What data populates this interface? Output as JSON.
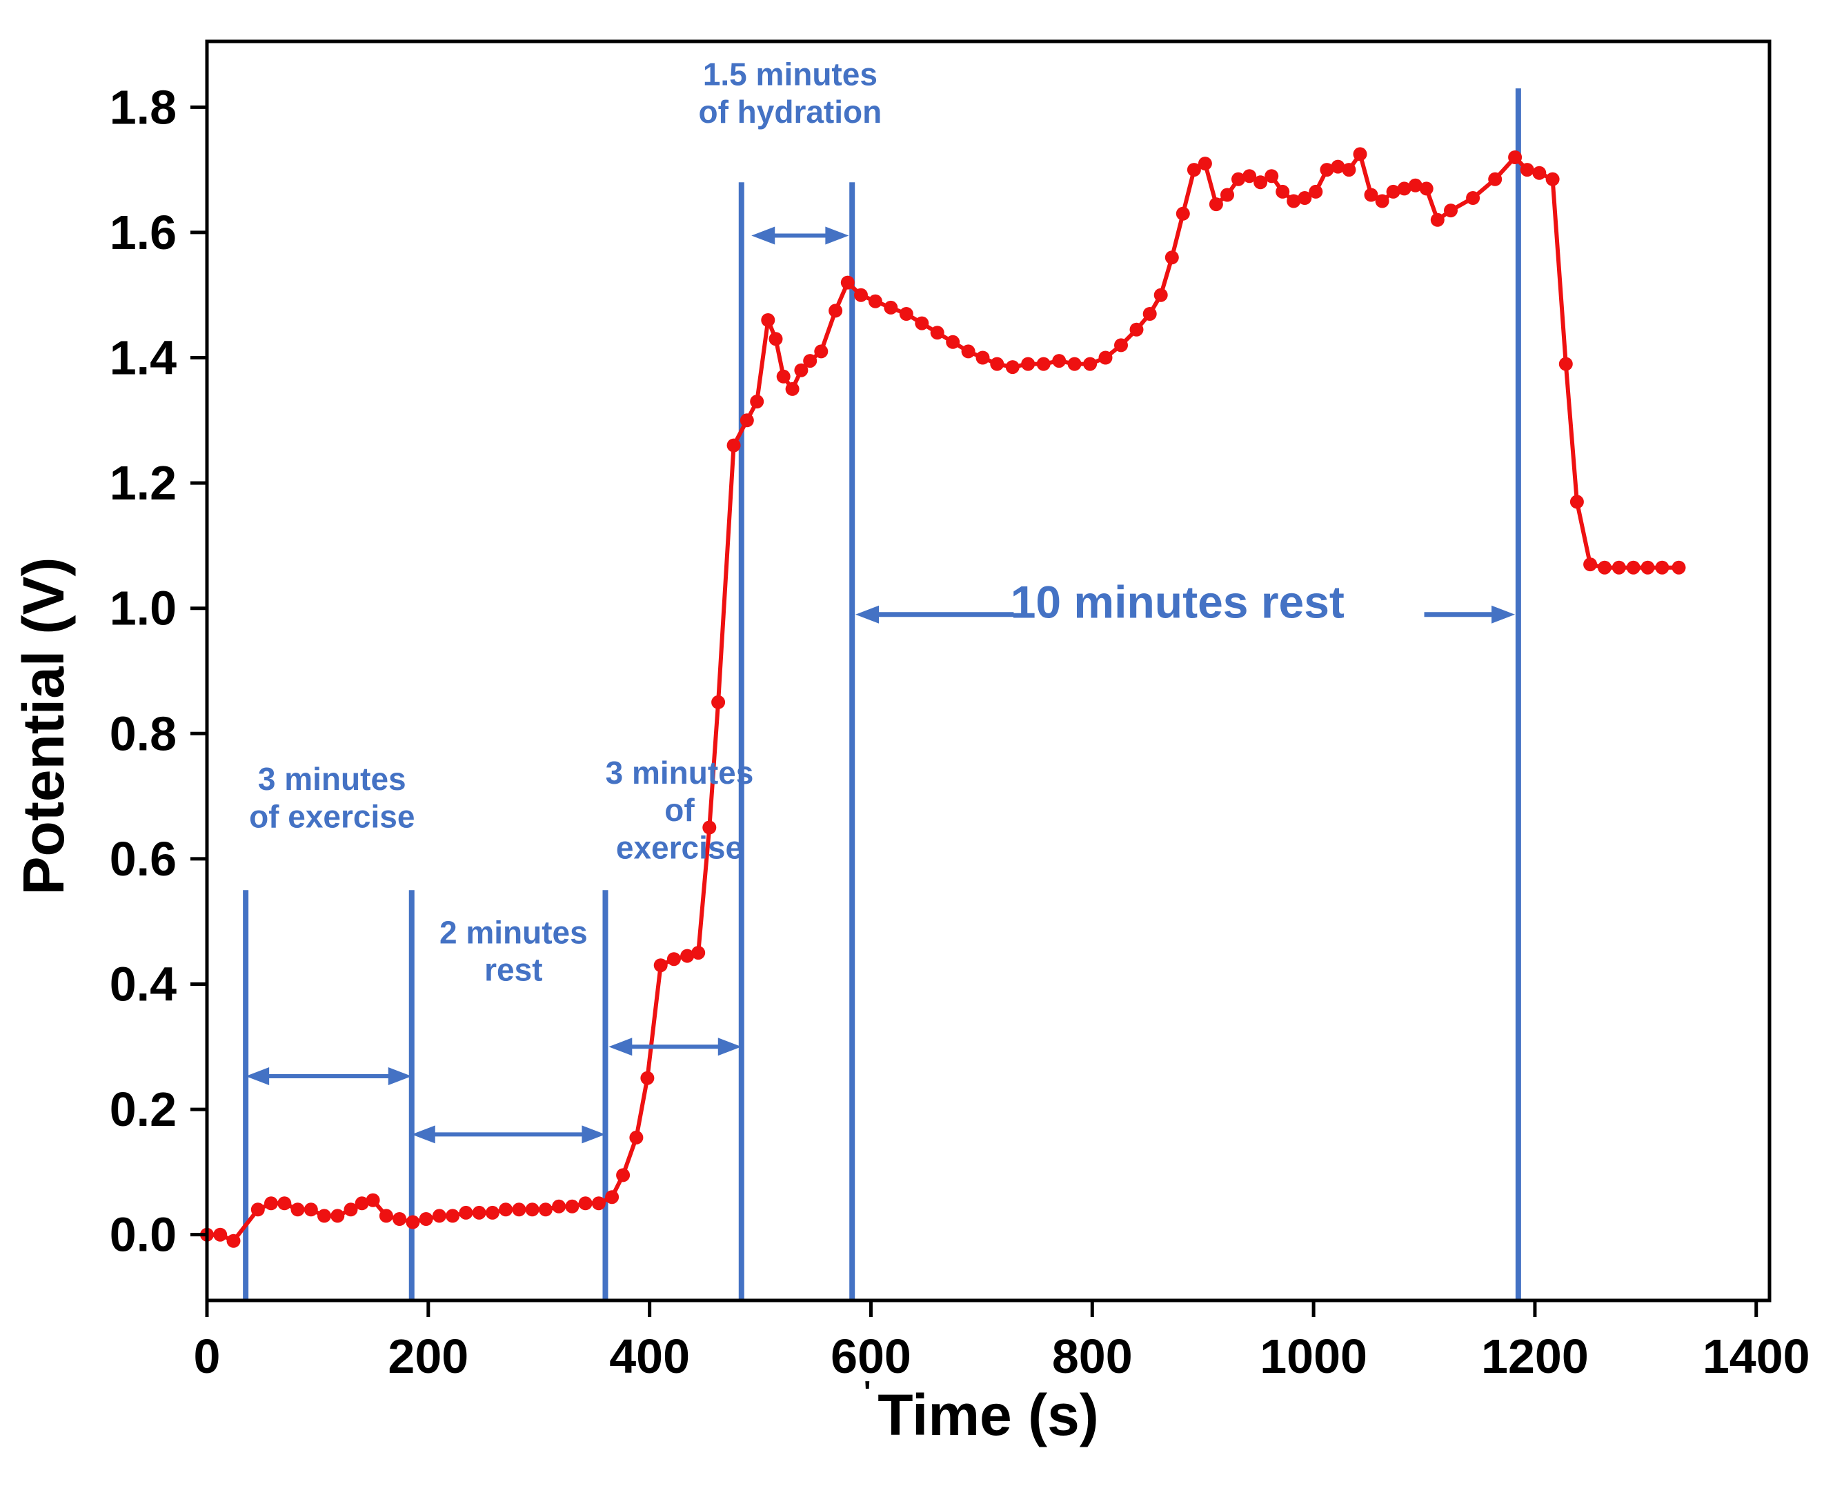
{
  "figure": {
    "background": "#ffffff",
    "axis_color": "#000000"
  },
  "chart_data": {
    "type": "line",
    "title": "",
    "xlabel": "Time (s)",
    "xlabel_prefix": "'",
    "ylabel": "Potential (V)",
    "xlim": [
      0,
      1412
    ],
    "ylim": [
      -0.105,
      1.905
    ],
    "xticks": [
      0,
      200,
      400,
      600,
      800,
      1000,
      1200,
      1400
    ],
    "xtick_labels": [
      "0",
      "200",
      "400",
      "600",
      "800",
      "1000",
      "1200",
      "1400"
    ],
    "yticks": [
      0.0,
      0.2,
      0.4,
      0.6,
      0.8,
      1.0,
      1.2,
      1.4,
      1.6,
      1.8
    ],
    "ytick_labels": [
      "0.0",
      "0.2",
      "0.4",
      "0.6",
      "0.8",
      "1.0",
      "1.2",
      "1.4",
      "1.6",
      "1.8"
    ],
    "line_color": "#ee1111",
    "annotation_color": "#4472c4",
    "grid": false,
    "legend": "none",
    "series": [
      {
        "name": "potential",
        "points": [
          [
            0,
            0.0
          ],
          [
            12,
            0.0
          ],
          [
            24,
            -0.01
          ],
          [
            46,
            0.04
          ],
          [
            58,
            0.05
          ],
          [
            70,
            0.05
          ],
          [
            82,
            0.04
          ],
          [
            94,
            0.04
          ],
          [
            106,
            0.03
          ],
          [
            118,
            0.03
          ],
          [
            130,
            0.04
          ],
          [
            140,
            0.05
          ],
          [
            150,
            0.055
          ],
          [
            162,
            0.03
          ],
          [
            174,
            0.025
          ],
          [
            186,
            0.02
          ],
          [
            198,
            0.025
          ],
          [
            210,
            0.03
          ],
          [
            222,
            0.03
          ],
          [
            234,
            0.035
          ],
          [
            246,
            0.035
          ],
          [
            258,
            0.035
          ],
          [
            270,
            0.04
          ],
          [
            282,
            0.04
          ],
          [
            294,
            0.04
          ],
          [
            306,
            0.04
          ],
          [
            318,
            0.045
          ],
          [
            330,
            0.045
          ],
          [
            342,
            0.05
          ],
          [
            354,
            0.05
          ],
          [
            366,
            0.06
          ],
          [
            376,
            0.095
          ],
          [
            388,
            0.155
          ],
          [
            398,
            0.25
          ],
          [
            410,
            0.43
          ],
          [
            422,
            0.44
          ],
          [
            434,
            0.445
          ],
          [
            444,
            0.45
          ],
          [
            454,
            0.65
          ],
          [
            462,
            0.85
          ],
          [
            476,
            1.26
          ],
          [
            488,
            1.3
          ],
          [
            497,
            1.33
          ],
          [
            507,
            1.46
          ],
          [
            514,
            1.43
          ],
          [
            521,
            1.37
          ],
          [
            529,
            1.35
          ],
          [
            537,
            1.38
          ],
          [
            545,
            1.395
          ],
          [
            555,
            1.41
          ],
          [
            568,
            1.475
          ],
          [
            579,
            1.52
          ],
          [
            591,
            1.5
          ],
          [
            604,
            1.49
          ],
          [
            618,
            1.48
          ],
          [
            632,
            1.47
          ],
          [
            646,
            1.455
          ],
          [
            660,
            1.44
          ],
          [
            674,
            1.425
          ],
          [
            688,
            1.41
          ],
          [
            701,
            1.4
          ],
          [
            714,
            1.39
          ],
          [
            728,
            1.385
          ],
          [
            742,
            1.39
          ],
          [
            756,
            1.39
          ],
          [
            770,
            1.395
          ],
          [
            784,
            1.39
          ],
          [
            798,
            1.39
          ],
          [
            812,
            1.4
          ],
          [
            826,
            1.42
          ],
          [
            840,
            1.445
          ],
          [
            852,
            1.47
          ],
          [
            862,
            1.5
          ],
          [
            872,
            1.56
          ],
          [
            882,
            1.63
          ],
          [
            892,
            1.7
          ],
          [
            902,
            1.71
          ],
          [
            912,
            1.645
          ],
          [
            922,
            1.66
          ],
          [
            932,
            1.685
          ],
          [
            942,
            1.69
          ],
          [
            952,
            1.68
          ],
          [
            962,
            1.69
          ],
          [
            972,
            1.665
          ],
          [
            982,
            1.65
          ],
          [
            992,
            1.655
          ],
          [
            1002,
            1.665
          ],
          [
            1012,
            1.7
          ],
          [
            1022,
            1.705
          ],
          [
            1032,
            1.7
          ],
          [
            1042,
            1.725
          ],
          [
            1052,
            1.66
          ],
          [
            1062,
            1.65
          ],
          [
            1072,
            1.665
          ],
          [
            1082,
            1.67
          ],
          [
            1092,
            1.675
          ],
          [
            1102,
            1.67
          ],
          [
            1112,
            1.62
          ],
          [
            1124,
            1.635
          ],
          [
            1144,
            1.655
          ],
          [
            1164,
            1.685
          ],
          [
            1182,
            1.72
          ],
          [
            1193,
            1.7
          ],
          [
            1204,
            1.695
          ],
          [
            1216,
            1.685
          ],
          [
            1228,
            1.39
          ],
          [
            1238,
            1.17
          ],
          [
            1250,
            1.07
          ],
          [
            1263,
            1.065
          ],
          [
            1276,
            1.065
          ],
          [
            1289,
            1.065
          ],
          [
            1302,
            1.065
          ],
          [
            1315,
            1.065
          ],
          [
            1330,
            1.065
          ]
        ]
      }
    ],
    "phase_lines": [
      {
        "x": 35,
        "y_top": 0.55
      },
      {
        "x": 185,
        "y_top": 0.55
      },
      {
        "x": 360,
        "y_top": 0.55
      },
      {
        "x": 483,
        "y_top": 1.68
      },
      {
        "x": 583,
        "y_top": 1.68
      },
      {
        "x": 1185,
        "y_top": 1.83
      }
    ],
    "span_arrows": [
      {
        "x1": 35,
        "x2": 185,
        "y": 0.253
      },
      {
        "x1": 185,
        "x2": 360,
        "y": 0.16
      },
      {
        "x1": 363,
        "x2": 483,
        "y": 0.3
      },
      {
        "x1": 492,
        "x2": 580,
        "y": 1.595
      }
    ],
    "rest_arrows": {
      "left": {
        "tip_x": 586,
        "tail_x": 729,
        "y": 0.99
      },
      "right": {
        "tip_x": 1182,
        "tail_x": 1100,
        "y": 0.99
      }
    },
    "annotations": [
      {
        "lines": [
          "3 minutes",
          "of exercise"
        ],
        "x": 113,
        "y": 0.71,
        "size": "small"
      },
      {
        "lines": [
          "2 minutes",
          "rest"
        ],
        "x": 277,
        "y": 0.465,
        "size": "small"
      },
      {
        "lines": [
          "3 minutes",
          "of",
          "exercise"
        ],
        "x": 427,
        "y": 0.72,
        "size": "small"
      },
      {
        "lines": [
          "1.5 minutes",
          "of hydration"
        ],
        "x": 527,
        "y": 1.835,
        "size": "small"
      },
      {
        "lines": [
          "10 minutes rest"
        ],
        "x": 877,
        "y": 0.985,
        "size": "large"
      }
    ]
  }
}
